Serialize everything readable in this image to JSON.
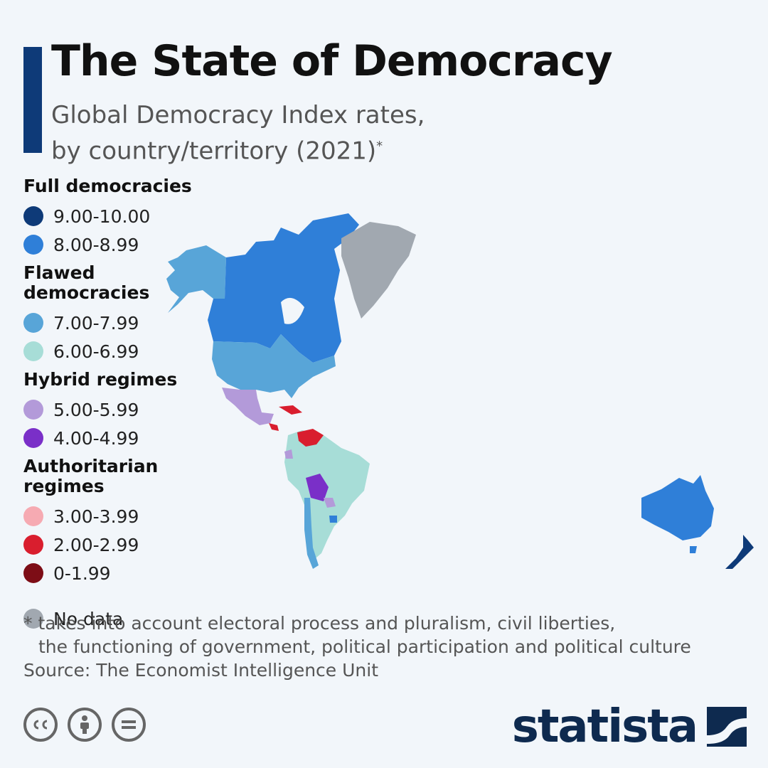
{
  "header": {
    "title": "The State of Democracy",
    "subtitle_line1": "Global Democracy Index rates,",
    "subtitle_line2": "by country/territory (2021)",
    "subtitle_mark": "*"
  },
  "legend": {
    "groups": [
      {
        "heading": "Full democracies",
        "items": [
          {
            "label": "9.00-10.00",
            "color": "#0e3a78"
          },
          {
            "label": "8.00-8.99",
            "color": "#2f7fd8"
          }
        ]
      },
      {
        "heading": "Flawed democracies",
        "items": [
          {
            "label": "7.00-7.99",
            "color": "#58a5d8"
          },
          {
            "label": "6.00-6.99",
            "color": "#a7ddd7"
          }
        ]
      },
      {
        "heading": "Hybrid regimes",
        "items": [
          {
            "label": "5.00-5.99",
            "color": "#b39ad9"
          },
          {
            "label": "4.00-4.99",
            "color": "#7a2fc8"
          }
        ]
      },
      {
        "heading": "Authoritarian regimes",
        "items": [
          {
            "label": "3.00-3.99",
            "color": "#f6aab2"
          },
          {
            "label": "2.00-2.99",
            "color": "#d91e2e"
          },
          {
            "label": "0-1.99",
            "color": "#7d0d16"
          }
        ]
      }
    ],
    "no_data": {
      "label": "No data",
      "color": "#a1a8b0"
    }
  },
  "map": {
    "regions": [
      {
        "name": "canada",
        "color": "#2f7fd8"
      },
      {
        "name": "alaska",
        "color": "#58a5d8"
      },
      {
        "name": "usa",
        "color": "#58a5d8"
      },
      {
        "name": "greenland",
        "color": "#a1a8b0"
      },
      {
        "name": "mexico",
        "color": "#b39ad9"
      },
      {
        "name": "cuba",
        "color": "#d91e2e"
      },
      {
        "name": "venezuela",
        "color": "#d91e2e"
      },
      {
        "name": "nicaragua",
        "color": "#d91e2e"
      },
      {
        "name": "bolivia",
        "color": "#7a2fc8"
      },
      {
        "name": "south-america",
        "color": "#a7ddd7"
      },
      {
        "name": "chile",
        "color": "#58a5d8"
      },
      {
        "name": "uruguay",
        "color": "#2f7fd8"
      },
      {
        "name": "paraguay",
        "color": "#b39ad9"
      },
      {
        "name": "ecuador",
        "color": "#b39ad9"
      },
      {
        "name": "australia",
        "color": "#2f7fd8"
      },
      {
        "name": "new-zealand",
        "color": "#0e3a78"
      }
    ]
  },
  "footer": {
    "note_line1": "* takes into account electoral process and pluralism, civil liberties,",
    "note_line2": "the functioning of government, political participation and political culture",
    "source": "Source: The Economist Intelligence Unit",
    "brand": "statista",
    "license_icons": [
      "cc-icon",
      "attribution-icon",
      "no-derivatives-icon"
    ]
  }
}
